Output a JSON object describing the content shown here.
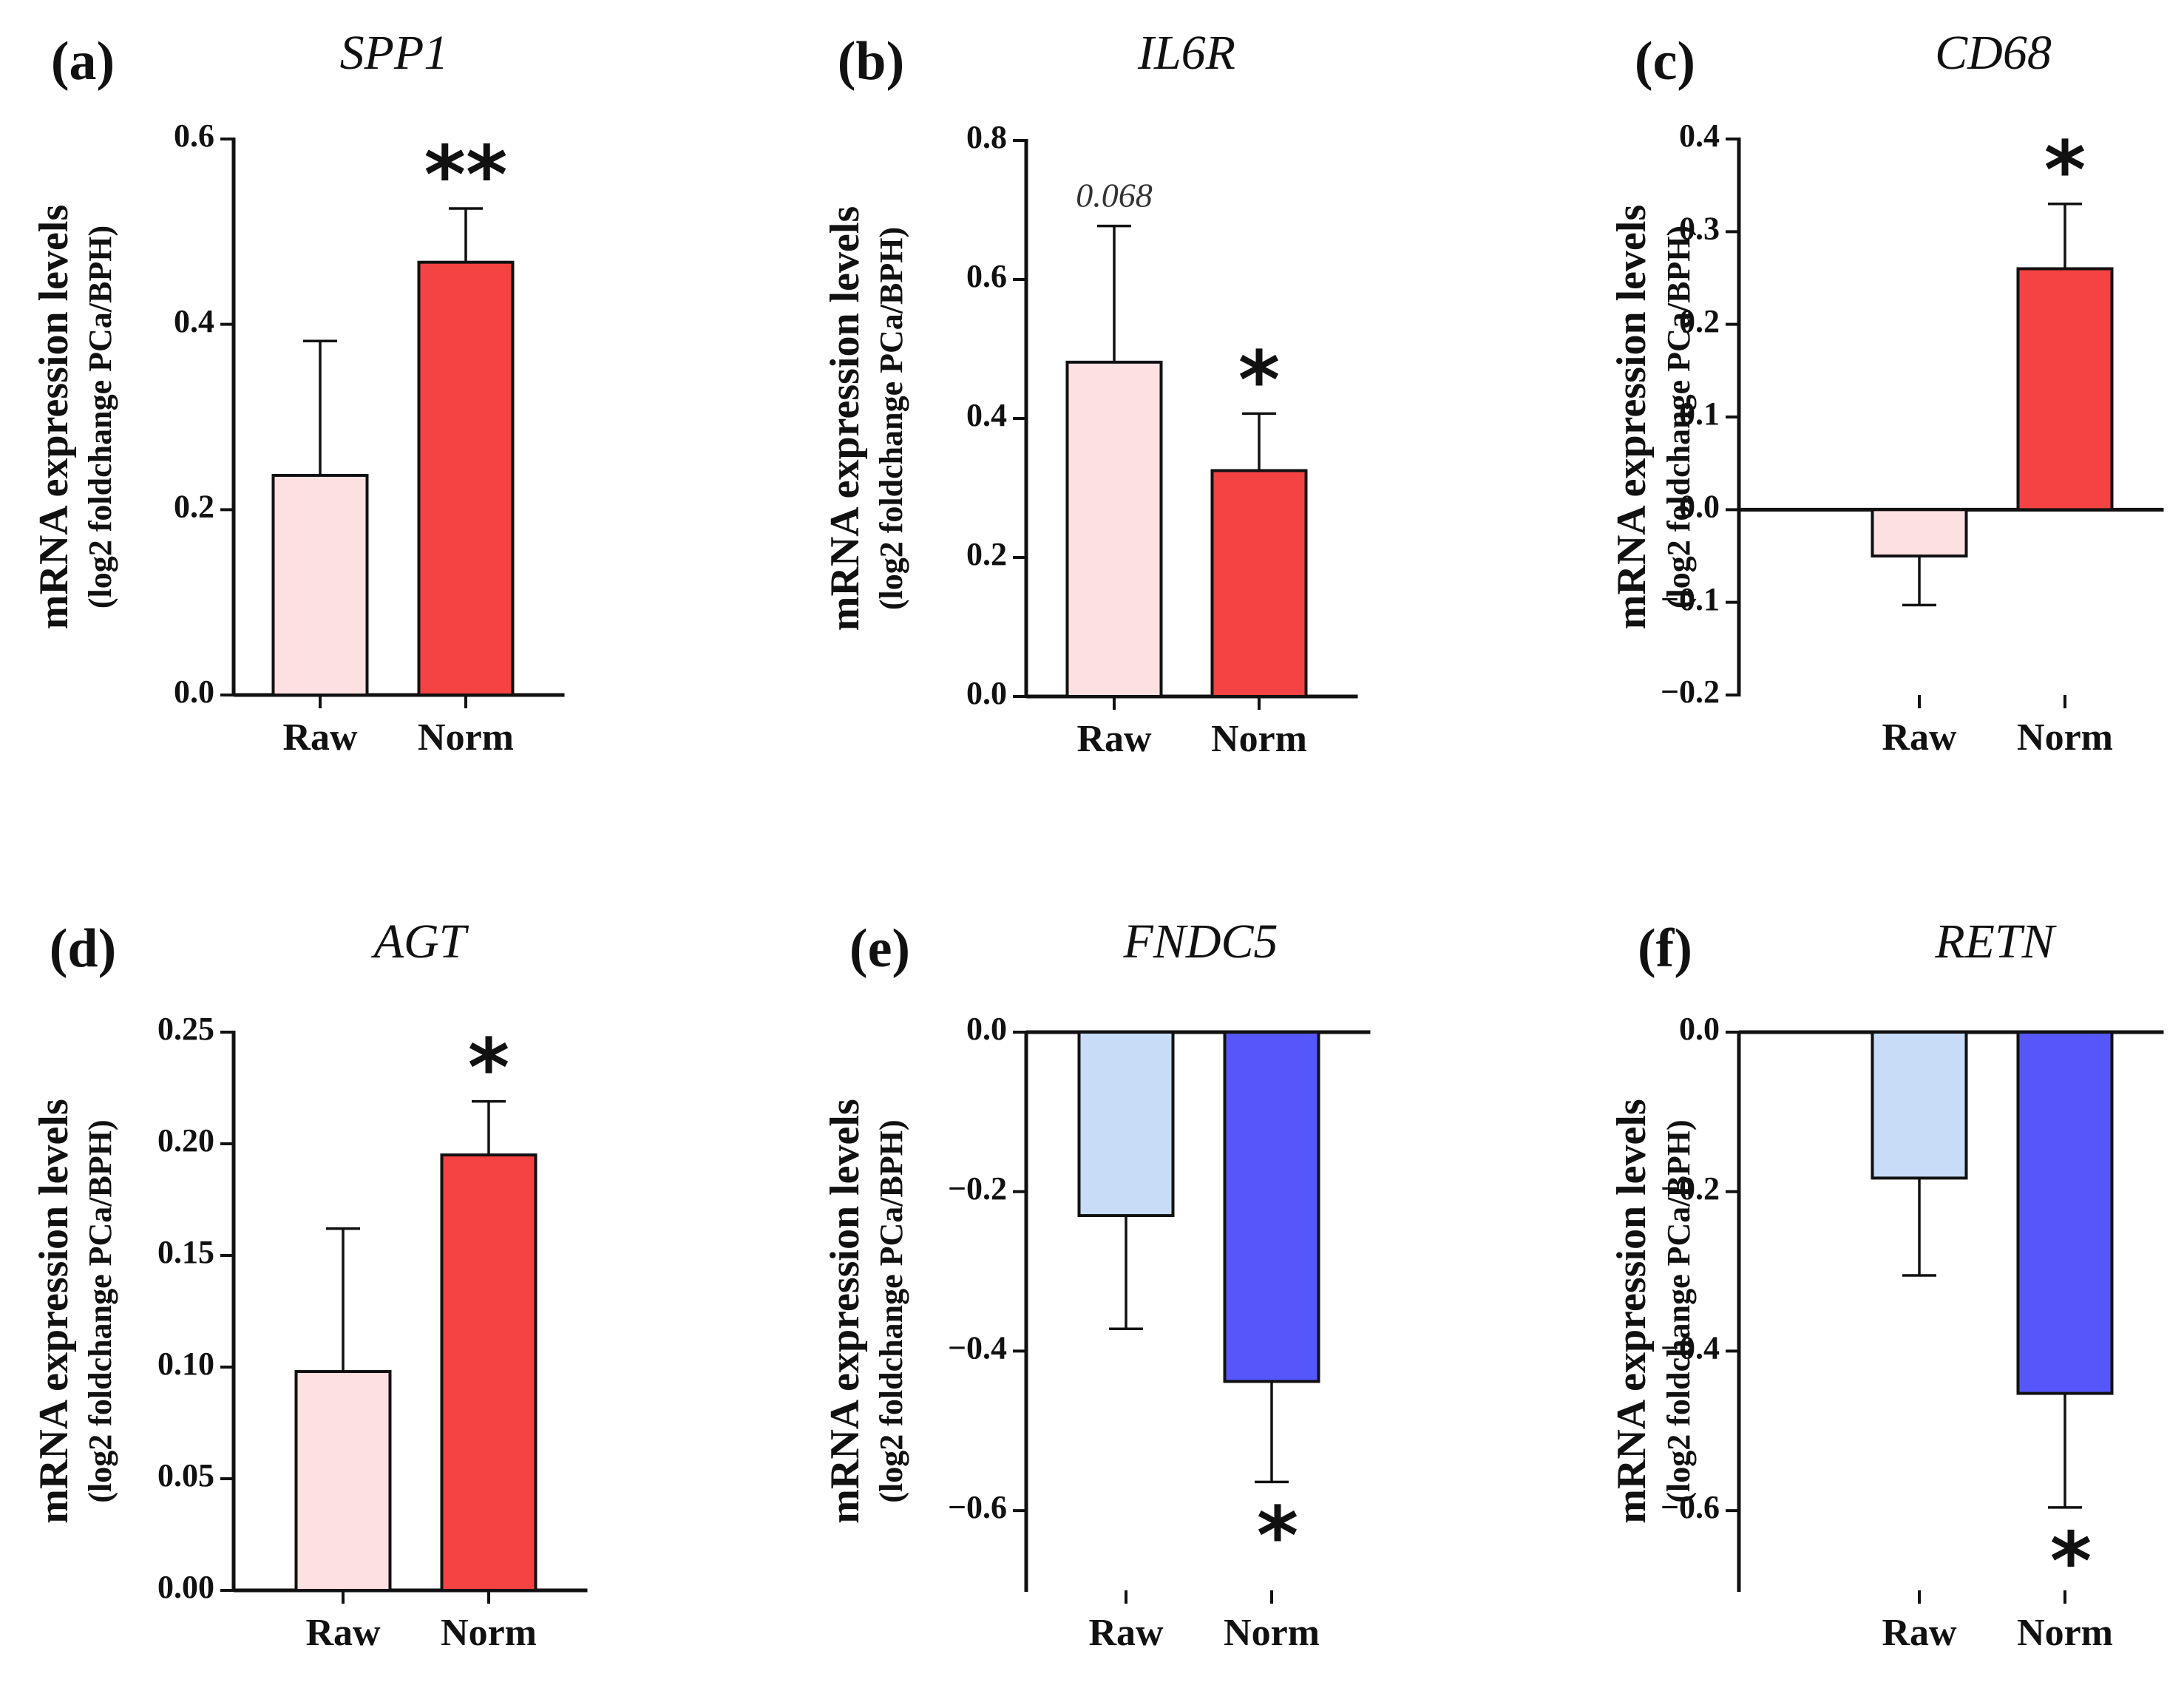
{
  "figure": {
    "ylabel": "mRNA expression levels",
    "ylabel_sub": "(log2 foldchange PCa/BPH)"
  },
  "colors": {
    "up_raw": "#fde0e2",
    "up_norm": "#f54242",
    "down_raw": "#c8dcf8",
    "down_norm": "#5557fa"
  },
  "chart_data": [
    {
      "type": "bar",
      "panel": "(a)",
      "title": "SPP1",
      "categories": [
        "Raw",
        "Norm"
      ],
      "values": [
        0.237,
        0.467
      ],
      "errors": [
        0.145,
        0.058
      ],
      "colors": [
        "#fde0e2",
        "#f54242"
      ],
      "ylim": [
        0,
        0.6
      ],
      "yticks": [
        0.0,
        0.2,
        0.4,
        0.6
      ],
      "tick_labels": [
        "0.0",
        "0.2",
        "0.4",
        "0.6"
      ],
      "annotations": [
        {
          "category": "Norm",
          "text": "**",
          "position": "above"
        }
      ]
    },
    {
      "type": "bar",
      "panel": "(b)",
      "title": "IL6R",
      "categories": [
        "Raw",
        "Norm"
      ],
      "values": [
        0.481,
        0.325
      ],
      "errors": [
        0.196,
        0.082
      ],
      "colors": [
        "#fde0e2",
        "#f54242"
      ],
      "ylim": [
        0,
        0.8
      ],
      "yticks": [
        0.0,
        0.2,
        0.4,
        0.6,
        0.8
      ],
      "tick_labels": [
        "0.0",
        "0.2",
        "0.4",
        "0.6",
        "0.8"
      ],
      "annotations": [
        {
          "category": "Raw",
          "text": "0.068",
          "position": "above",
          "style": "pvalue"
        },
        {
          "category": "Norm",
          "text": "*",
          "position": "above"
        }
      ]
    },
    {
      "type": "bar",
      "panel": "(c)",
      "title": "CD68",
      "categories": [
        "Raw",
        "Norm"
      ],
      "values": [
        -0.05,
        0.26
      ],
      "errors": [
        0.053,
        0.07
      ],
      "colors": [
        "#fde0e2",
        "#f54242"
      ],
      "ylim": [
        -0.2,
        0.4
      ],
      "yticks": [
        -0.2,
        -0.1,
        0.0,
        0.1,
        0.2,
        0.3,
        0.4
      ],
      "tick_labels": [
        "−0.2",
        "−0.1",
        "0.0",
        "0.1",
        "0.2",
        "0.3",
        "0.4"
      ],
      "annotations": [
        {
          "category": "Norm",
          "text": "*",
          "position": "above"
        }
      ]
    },
    {
      "type": "bar",
      "panel": "(d)",
      "title": "AGT",
      "categories": [
        "Raw",
        "Norm"
      ],
      "values": [
        0.098,
        0.195
      ],
      "errors": [
        0.064,
        0.024
      ],
      "colors": [
        "#fde0e2",
        "#f54242"
      ],
      "ylim": [
        0,
        0.25
      ],
      "yticks": [
        0.0,
        0.05,
        0.1,
        0.15,
        0.2,
        0.25
      ],
      "tick_labels": [
        "0.00",
        "0.05",
        "0.10",
        "0.15",
        "0.20",
        "0.25"
      ],
      "annotations": [
        {
          "category": "Norm",
          "text": "*",
          "position": "above"
        }
      ]
    },
    {
      "type": "bar",
      "panel": "(e)",
      "title": "FNDC5",
      "categories": [
        "Raw",
        "Norm"
      ],
      "values": [
        -0.23,
        -0.438
      ],
      "errors": [
        0.142,
        0.126
      ],
      "colors": [
        "#c8dcf8",
        "#5557fa"
      ],
      "ylim": [
        -0.7,
        0.0
      ],
      "yticks": [
        -0.6,
        -0.4,
        -0.2,
        0.0
      ],
      "tick_labels": [
        "−0.6",
        "−0.4",
        "−0.2",
        "0.0"
      ],
      "annotations": [
        {
          "category": "Norm",
          "text": "*",
          "position": "below"
        }
      ]
    },
    {
      "type": "bar",
      "panel": "(f)",
      "title": "RETN",
      "categories": [
        "Raw",
        "Norm"
      ],
      "values": [
        -0.183,
        -0.453
      ],
      "errors": [
        0.122,
        0.143
      ],
      "colors": [
        "#c8dcf8",
        "#5557fa"
      ],
      "ylim": [
        -0.7,
        0.0
      ],
      "yticks": [
        -0.6,
        -0.4,
        -0.2,
        0.0
      ],
      "tick_labels": [
        "−0.6",
        "−0.4",
        "−0.2",
        "0.0"
      ],
      "annotations": [
        {
          "category": "Norm",
          "text": "*",
          "position": "below"
        }
      ]
    }
  ]
}
